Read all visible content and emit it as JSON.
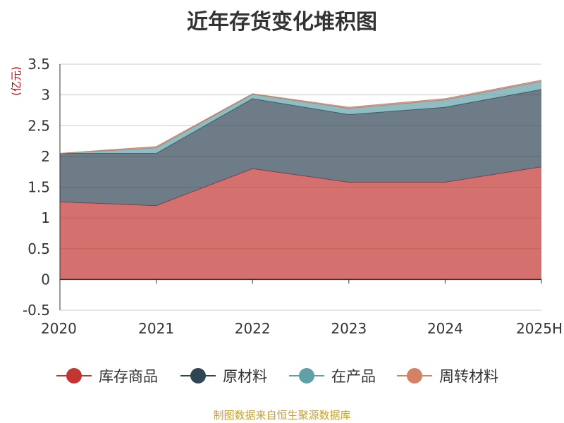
{
  "chart_data": {
    "type": "area",
    "stacked": true,
    "title": "近年存货变化堆积图",
    "unit_label": "(亿元)",
    "categories": [
      "2020",
      "2021",
      "2022",
      "2023",
      "2024",
      "2025H"
    ],
    "ylim": [
      -0.5,
      3.5
    ],
    "yticks": [
      "3.5",
      "3",
      "2.5",
      "2",
      "1.5",
      "1",
      "0.5",
      "0",
      "-0.5"
    ],
    "ytick_values": [
      3.5,
      3,
      2.5,
      2,
      1.5,
      1,
      0.5,
      0,
      -0.5
    ],
    "grid": true,
    "legend_position": "bottom",
    "series": [
      {
        "name": "库存商品",
        "color": "#c23531",
        "values": [
          1.26,
          1.2,
          1.8,
          1.58,
          1.58,
          1.83
        ]
      },
      {
        "name": "原材料",
        "color": "#2f4554",
        "values": [
          0.79,
          0.85,
          1.14,
          1.1,
          1.22,
          1.26
        ]
      },
      {
        "name": "在产品",
        "color": "#61a0a8",
        "values": [
          0,
          0.09,
          0.07,
          0.1,
          0.12,
          0.13
        ]
      },
      {
        "name": "周转材料",
        "color": "#d48265",
        "values": [
          0,
          0.02,
          0.01,
          0.02,
          0.02,
          0.02
        ]
      }
    ]
  },
  "source_note": "制图数据来自恒生聚源数据库"
}
